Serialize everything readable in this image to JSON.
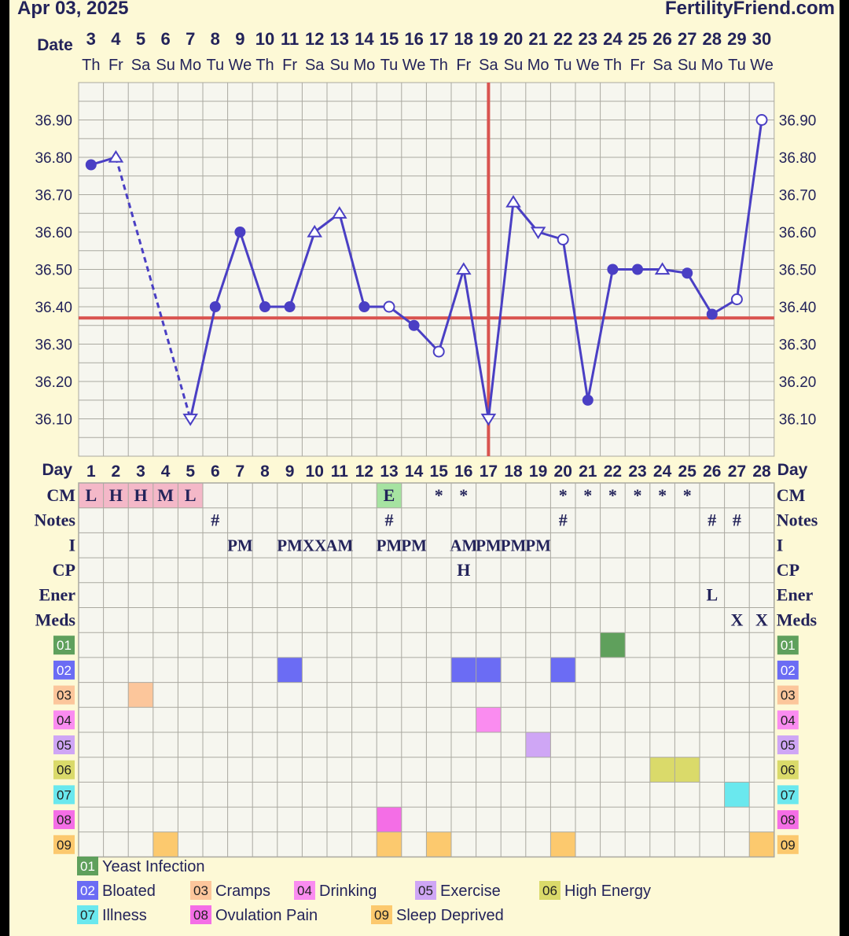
{
  "header": {
    "date": "Apr 03, 2025",
    "site": "FertilityFriend.com",
    "date_label": "Date"
  },
  "colors": {
    "background": "#fdf9d6",
    "grid_fill": "#f6f6ef",
    "grid_line": "#aaa9a0",
    "temp_line": "#4a3fc4",
    "coverline": "#d9534f",
    "ovulation_line": "#d9534f",
    "cm_pink": "#f4b8c8",
    "cm_green": "#a6e3a1"
  },
  "chart_data": {
    "type": "line",
    "dates": [
      "3",
      "4",
      "5",
      "6",
      "7",
      "8",
      "9",
      "10",
      "11",
      "12",
      "13",
      "14",
      "15",
      "16",
      "17",
      "18",
      "19",
      "20",
      "21",
      "22",
      "23",
      "24",
      "25",
      "26",
      "27",
      "28",
      "29",
      "30"
    ],
    "weekdays": [
      "Th",
      "Fr",
      "Sa",
      "Su",
      "Mo",
      "Tu",
      "We",
      "Th",
      "Fr",
      "Sa",
      "Su",
      "Mo",
      "Tu",
      "We",
      "Th",
      "Fr",
      "Sa",
      "Su",
      "Mo",
      "Tu",
      "We",
      "Th",
      "Fr",
      "Sa",
      "Su",
      "Mo",
      "Tu",
      "We"
    ],
    "cycle_days": [
      "1",
      "2",
      "3",
      "4",
      "5",
      "6",
      "7",
      "8",
      "9",
      "10",
      "11",
      "12",
      "13",
      "14",
      "15",
      "16",
      "17",
      "18",
      "19",
      "20",
      "21",
      "22",
      "23",
      "24",
      "25",
      "26",
      "27",
      "28"
    ],
    "temps": [
      36.78,
      36.8,
      null,
      null,
      36.1,
      36.4,
      36.6,
      36.4,
      36.4,
      36.6,
      36.65,
      36.4,
      36.4,
      36.35,
      36.28,
      36.5,
      36.1,
      36.68,
      36.6,
      36.58,
      36.15,
      36.5,
      36.5,
      36.5,
      36.49,
      36.38,
      36.42,
      36.9
    ],
    "markers": [
      "filled",
      "triangle",
      null,
      null,
      "triangle",
      "filled",
      "filled",
      "filled",
      "filled",
      "triangle",
      "triangle",
      "filled",
      "open",
      "filled",
      "open",
      "triangle",
      "triangle",
      "triangle",
      "triangle",
      "open",
      "filled",
      "filled",
      "filled",
      "triangle",
      "filled",
      "filled",
      "open",
      "open"
    ],
    "dashed_segments": [
      [
        2,
        5
      ]
    ],
    "y_ticks": [
      "36.90",
      "36.80",
      "36.70",
      "36.60",
      "36.50",
      "36.40",
      "36.30",
      "36.20",
      "36.10"
    ],
    "ylim": [
      36.0,
      37.0
    ],
    "coverline": 36.37,
    "ovulation_day_index": 16,
    "day_label": "Day"
  },
  "rows": {
    "labels": [
      "CM",
      "Notes",
      "I",
      "CP",
      "Ener",
      "Meds"
    ],
    "cm": [
      "L",
      "H",
      "H",
      "M",
      "L",
      "",
      "",
      "",
      "",
      "",
      "",
      "",
      "E",
      "",
      "*",
      "*",
      "",
      "",
      "",
      "*",
      "*",
      "*",
      "*",
      "*",
      "*",
      "",
      "",
      ""
    ],
    "notes": [
      "",
      "",
      "",
      "",
      "",
      "#",
      "",
      "",
      "",
      "",
      "",
      "",
      "#",
      "",
      "",
      "",
      "",
      "",
      "",
      "#",
      "",
      "",
      "",
      "",
      "",
      "#",
      "#",
      ""
    ],
    "intercourse": [
      "",
      "",
      "",
      "",
      "",
      "",
      "PM",
      "",
      "PM",
      "XX",
      "AM",
      "",
      "PM",
      "PM",
      "",
      "AM",
      "PM",
      "PM",
      "PM",
      "",
      "",
      "",
      "",
      "",
      "",
      "",
      "",
      ""
    ],
    "cp": [
      "",
      "",
      "",
      "",
      "",
      "",
      "",
      "",
      "",
      "",
      "",
      "",
      "",
      "",
      "",
      "H",
      "",
      "",
      "",
      "",
      "",
      "",
      "",
      "",
      "",
      "",
      "",
      ""
    ],
    "energy": [
      "",
      "",
      "",
      "",
      "",
      "",
      "",
      "",
      "",
      "",
      "",
      "",
      "",
      "",
      "",
      "",
      "",
      "",
      "",
      "",
      "",
      "",
      "",
      "",
      "",
      "L",
      "",
      ""
    ],
    "meds": [
      "",
      "",
      "",
      "",
      "",
      "",
      "",
      "",
      "",
      "",
      "",
      "",
      "",
      "",
      "",
      "",
      "",
      "",
      "",
      "",
      "",
      "",
      "",
      "",
      "",
      "",
      "X",
      "X"
    ]
  },
  "symptoms": [
    {
      "code": "01",
      "name": "Yeast Infection",
      "color": "#5fa05c",
      "days": [
        21
      ]
    },
    {
      "code": "02",
      "name": "Bloated",
      "color": "#6b6cf4",
      "days": [
        8,
        15,
        16,
        19
      ]
    },
    {
      "code": "03",
      "name": "Cramps",
      "color": "#fcc69b",
      "days": [
        2
      ]
    },
    {
      "code": "04",
      "name": "Drinking",
      "color": "#fa8cf0",
      "days": [
        16
      ]
    },
    {
      "code": "05",
      "name": "Exercise",
      "color": "#cfa6f5",
      "days": [
        18
      ]
    },
    {
      "code": "06",
      "name": "High Energy",
      "color": "#dada6a",
      "days": [
        23,
        24
      ]
    },
    {
      "code": "07",
      "name": "Illness",
      "color": "#6ae8ee",
      "days": [
        26
      ]
    },
    {
      "code": "08",
      "name": "Ovulation Pain",
      "color": "#f46ee6",
      "days": [
        12
      ]
    },
    {
      "code": "09",
      "name": "Sleep Deprived",
      "color": "#fcc96e",
      "days": [
        3,
        12,
        14,
        19,
        27
      ]
    }
  ]
}
